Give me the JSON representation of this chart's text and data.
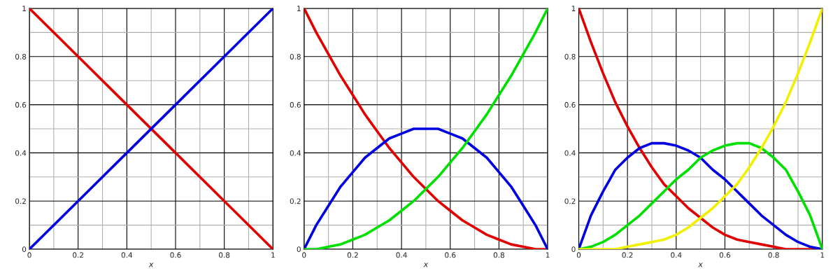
{
  "chart_data": [
    {
      "type": "line",
      "xlabel": "x",
      "xlim": [
        0,
        1
      ],
      "ylim": [
        0,
        1
      ],
      "xticks": [
        0,
        0.2,
        0.4,
        0.6,
        0.8,
        1
      ],
      "yticks": [
        0,
        0.2,
        0.4,
        0.6,
        0.8,
        1
      ],
      "grid": true,
      "x": [
        0,
        0.2,
        0.4,
        0.6,
        0.8,
        1
      ],
      "series": [
        {
          "color": "#e00000",
          "values": [
            1,
            0.8,
            0.6,
            0.4,
            0.2,
            0
          ]
        },
        {
          "color": "#0000e0",
          "values": [
            0,
            0.2,
            0.4,
            0.6,
            0.8,
            1
          ]
        }
      ]
    },
    {
      "type": "line",
      "xlabel": "x",
      "xlim": [
        0,
        1
      ],
      "ylim": [
        0,
        1
      ],
      "xticks": [
        0,
        0.2,
        0.4,
        0.6,
        0.8,
        1
      ],
      "yticks": [
        0,
        0.2,
        0.4,
        0.6,
        0.8,
        1
      ],
      "grid": true,
      "x": [
        0,
        0.05,
        0.1,
        0.15,
        0.2,
        0.25,
        0.3,
        0.35,
        0.4,
        0.45,
        0.5,
        0.55,
        0.6,
        0.65,
        0.7,
        0.75,
        0.8,
        0.85,
        0.9,
        0.95,
        1
      ],
      "series": [
        {
          "color": "#e00000",
          "values": [
            1,
            0.9,
            0.81,
            0.72,
            0.64,
            0.56,
            0.49,
            0.42,
            0.36,
            0.3,
            0.25,
            0.2,
            0.16,
            0.12,
            0.09,
            0.06,
            0.04,
            0.02,
            0.01,
            0,
            0
          ]
        },
        {
          "color": "#0000e0",
          "values": [
            0,
            0.1,
            0.18,
            0.26,
            0.32,
            0.38,
            0.42,
            0.46,
            0.48,
            0.5,
            0.5,
            0.5,
            0.48,
            0.46,
            0.42,
            0.38,
            0.32,
            0.26,
            0.18,
            0.1,
            0
          ]
        },
        {
          "color": "#00e000",
          "values": [
            0,
            0,
            0.01,
            0.02,
            0.04,
            0.06,
            0.09,
            0.12,
            0.16,
            0.2,
            0.25,
            0.3,
            0.36,
            0.42,
            0.49,
            0.56,
            0.64,
            0.72,
            0.81,
            0.9,
            1
          ]
        }
      ]
    },
    {
      "type": "line",
      "xlabel": "x",
      "xlim": [
        0,
        1
      ],
      "ylim": [
        0,
        1
      ],
      "xticks": [
        0,
        0.2,
        0.4,
        0.6,
        0.8,
        1
      ],
      "yticks": [
        0,
        0.2,
        0.4,
        0.6,
        0.8,
        1
      ],
      "grid": true,
      "x": [
        0,
        0.05,
        0.1,
        0.15,
        0.2,
        0.25,
        0.3,
        0.35,
        0.4,
        0.45,
        0.5,
        0.55,
        0.6,
        0.65,
        0.7,
        0.75,
        0.8,
        0.85,
        0.9,
        0.95,
        1
      ],
      "series": [
        {
          "color": "#e00000",
          "values": [
            1,
            0.86,
            0.73,
            0.61,
            0.51,
            0.42,
            0.34,
            0.27,
            0.22,
            0.17,
            0.13,
            0.09,
            0.06,
            0.04,
            0.03,
            0.02,
            0.01,
            0,
            0,
            0,
            0
          ]
        },
        {
          "color": "#0000e0",
          "values": [
            0,
            0.14,
            0.24,
            0.33,
            0.38,
            0.42,
            0.44,
            0.44,
            0.43,
            0.41,
            0.38,
            0.33,
            0.29,
            0.24,
            0.19,
            0.14,
            0.1,
            0.06,
            0.03,
            0.01,
            0
          ]
        },
        {
          "color": "#00e000",
          "values": [
            0,
            0.01,
            0.03,
            0.06,
            0.1,
            0.14,
            0.19,
            0.24,
            0.29,
            0.33,
            0.38,
            0.41,
            0.43,
            0.44,
            0.44,
            0.42,
            0.38,
            0.33,
            0.24,
            0.14,
            0
          ]
        },
        {
          "color": "#f0f000",
          "values": [
            0,
            0,
            0,
            0,
            0.01,
            0.02,
            0.03,
            0.04,
            0.06,
            0.09,
            0.13,
            0.17,
            0.22,
            0.27,
            0.34,
            0.42,
            0.51,
            0.61,
            0.73,
            0.86,
            1
          ]
        }
      ]
    }
  ]
}
